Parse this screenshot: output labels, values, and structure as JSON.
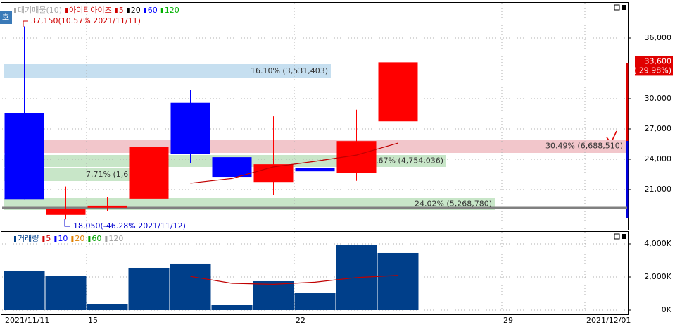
{
  "chart_data": [
    {
      "type": "candlestick",
      "categories": [
        "2021/11/11",
        null,
        "15",
        null,
        null,
        null,
        null,
        "22",
        null,
        null,
        null,
        null,
        "29",
        null,
        "2021/12/01"
      ],
      "open": [
        28550,
        18500,
        19200,
        20100,
        29600,
        24200,
        21750,
        23150,
        22650,
        27750,
        null,
        null,
        null,
        null,
        null
      ],
      "high": [
        37150,
        21300,
        20250,
        25200,
        30900,
        24400,
        28250,
        25600,
        28900,
        33600,
        null,
        null,
        null,
        null,
        null
      ],
      "low": [
        20000,
        18050,
        18900,
        19800,
        23650,
        21850,
        20500,
        21350,
        21850,
        27050,
        null,
        null,
        null,
        null,
        null
      ],
      "close": [
        20000,
        19050,
        19400,
        25200,
        24550,
        22250,
        23500,
        22800,
        25800,
        33600,
        null,
        null,
        null,
        null,
        null
      ],
      "up_color": "#ff0000",
      "down_color": "#0000ff",
      "series": [
        {
          "name": "5",
          "color": "#c00000",
          "values": [
            null,
            null,
            null,
            null,
            21630,
            22090,
            23240,
            23790,
            24410,
            25600,
            null,
            null,
            null,
            null,
            null
          ]
        }
      ],
      "legend": [
        {
          "label": "대기매물(10)",
          "color": "#a8a8a8"
        },
        {
          "label": "아이티아이즈",
          "color": "#d00000"
        },
        {
          "label": "5",
          "color": "#d00000"
        },
        {
          "label": "20",
          "color": "#000000"
        },
        {
          "label": "60",
          "color": "#0000ff"
        },
        {
          "label": "120",
          "color": "#00b000"
        }
      ],
      "side_label": "호",
      "ylim": [
        17090,
        39420
      ],
      "yticks": [
        {
          "value": 21000,
          "label": "21,000"
        },
        {
          "value": 24000,
          "label": "24,000"
        },
        {
          "value": 27000,
          "label": "27,000"
        },
        {
          "value": 30000,
          "label": "30,000"
        },
        {
          "value": 36000,
          "label": "36,000"
        }
      ],
      "grid": true,
      "high_note": "37,150(10.57% 2021/11/11)",
      "low_note": "18,050(-46.28% 2021/11/12)",
      "current_price": {
        "value": 33600,
        "label": "33,600",
        "change": "(  29.98%)"
      },
      "bands": [
        {
          "label": "16.10% (3,531,403)",
          "color": "#c6dff0"
        },
        {
          "label": "30.49% (6,688,510)",
          "color": "#f2c6cb"
        },
        {
          "label": ".67% (4,754,036)",
          "color": "#c8e6c8"
        },
        {
          "label": "7.71% (1,6",
          "color": "#c8e6c8"
        },
        {
          "label": "24.02% (5,268,780)",
          "color": "#c8e6c8"
        }
      ]
    },
    {
      "type": "bar",
      "legend": [
        {
          "label": "거래량",
          "color": "#003f8a"
        },
        {
          "label": "5",
          "color": "#d00000"
        },
        {
          "label": "10",
          "color": "#0000ff"
        },
        {
          "label": "20",
          "color": "#e08000"
        },
        {
          "label": "60",
          "color": "#00a000"
        },
        {
          "label": "120",
          "color": "#a0a0a0"
        }
      ],
      "values": [
        2383,
        2043,
        383,
        2553,
        2809,
        298,
        1745,
        1021,
        3957,
        3447,
        null,
        null,
        null,
        null,
        null
      ],
      "color": "#003f8a",
      "series": [
        {
          "name": "5",
          "color": "#c00000",
          "values": [
            null,
            null,
            null,
            null,
            2034,
            1617,
            1558,
            1685,
            1966,
            2094,
            null,
            null,
            null,
            null,
            null
          ]
        }
      ],
      "ylim": [
        -255,
        4680
      ],
      "yticks": [
        {
          "value": 0,
          "label": "0K"
        },
        {
          "value": 2000,
          "label": "2,000K"
        },
        {
          "value": 4000,
          "label": "4,000K"
        }
      ],
      "grid": true
    }
  ]
}
